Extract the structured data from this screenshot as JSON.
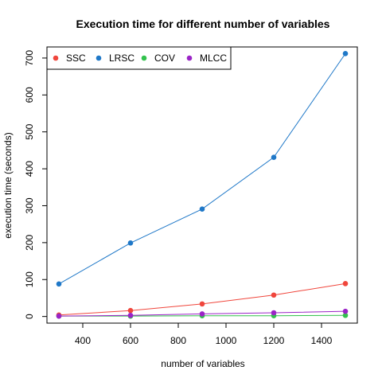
{
  "chart_data": {
    "type": "line",
    "title": "Execution time for different number of variables",
    "xlabel": "number of variables",
    "ylabel": "execution time (seconds)",
    "x": [
      300,
      600,
      900,
      1200,
      1500
    ],
    "xlim": [
      250,
      1550
    ],
    "ylim": [
      -18,
      730
    ],
    "x_ticks": [
      400,
      600,
      800,
      1000,
      1200,
      1400
    ],
    "y_ticks": [
      0,
      100,
      200,
      300,
      400,
      500,
      600,
      700
    ],
    "legend_position": "top-left",
    "legend_orientation": "horizontal",
    "grid": false,
    "series": [
      {
        "name": "SSC",
        "color": "#f0463c",
        "values": [
          4,
          16,
          34,
          58,
          89
        ]
      },
      {
        "name": "LRSC",
        "color": "#1f78c8",
        "values": [
          88,
          199,
          291,
          431,
          712
        ]
      },
      {
        "name": "COV",
        "color": "#33c24d",
        "values": [
          1,
          1,
          2,
          2,
          3
        ]
      },
      {
        "name": "MLCC",
        "color": "#9b24c7",
        "values": [
          1,
          3,
          7,
          10,
          14
        ]
      }
    ]
  }
}
